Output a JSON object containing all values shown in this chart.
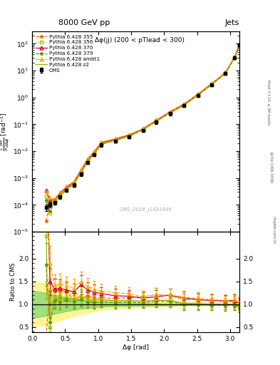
{
  "title_top": "8000 GeV pp",
  "title_right": "Jets",
  "annotation": "Δφ(jj) (200 < pTlead < 300)",
  "watermark": "CMS_2016_I1421646",
  "rivet_text": "Rivet 3.1.10, ≥ 3M events",
  "arxiv_text": "[arXiv:1306.3436]",
  "mcplots_text": "mcplots.cern.ch",
  "ylabel_main": "$\\frac{1}{\\sigma}\\frac{d\\sigma}{d\\Delta\\phi}$ [rad$^{-1}$]",
  "ylabel_ratio": "Ratio to CMS",
  "xlabel": "Δφ [rad]",
  "xlim": [
    0.0,
    3.14159
  ],
  "ylim_main": [
    1e-05,
    300
  ],
  "ylim_ratio": [
    0.39,
    2.59
  ],
  "ratio_yticks": [
    0.5,
    1.0,
    1.5,
    2.0
  ],
  "cms_x": [
    0.21,
    0.27,
    0.34,
    0.42,
    0.52,
    0.63,
    0.74,
    0.84,
    0.94,
    1.05,
    1.26,
    1.47,
    1.68,
    1.88,
    2.09,
    2.3,
    2.51,
    2.72,
    2.93,
    3.07,
    3.14
  ],
  "cms_y": [
    8e-05,
    0.0001,
    0.00012,
    0.0002,
    0.00035,
    0.00055,
    0.0014,
    0.0038,
    0.0075,
    0.017,
    0.024,
    0.034,
    0.06,
    0.12,
    0.25,
    0.5,
    1.2,
    3.0,
    8.0,
    30.0,
    90.0
  ],
  "cms_yerr": [
    2e-05,
    2e-05,
    2e-05,
    3e-05,
    5e-05,
    8e-05,
    0.0002,
    0.0005,
    0.001,
    0.002,
    0.003,
    0.004,
    0.007,
    0.015,
    0.03,
    0.06,
    0.15,
    0.35,
    0.9,
    3.5,
    10.0
  ],
  "p355_x": [
    0.21,
    0.27,
    0.34,
    0.42,
    0.52,
    0.63,
    0.74,
    0.84,
    0.94,
    1.05,
    1.26,
    1.47,
    1.68,
    1.88,
    2.09,
    2.3,
    2.51,
    2.72,
    2.93,
    3.07,
    3.14
  ],
  "p355_y": [
    2.5e-05,
    0.00013,
    0.00016,
    0.00026,
    0.00045,
    0.0006,
    0.0016,
    0.0045,
    0.0085,
    0.0195,
    0.027,
    0.039,
    0.07,
    0.145,
    0.3,
    0.55,
    1.35,
    3.3,
    8.5,
    32.0,
    90.0
  ],
  "p355_color": "#ff6600",
  "p355_marker": "*",
  "p355_ls": "--",
  "p356_x": [
    0.21,
    0.27,
    0.34,
    0.42,
    0.52,
    0.63,
    0.74,
    0.84,
    0.94,
    1.05,
    1.26,
    1.47,
    1.68,
    1.88,
    2.09,
    2.3,
    2.51,
    2.72,
    2.93,
    3.07,
    3.14
  ],
  "p356_y": [
    0.0002,
    5e-05,
    0.00014,
    0.00022,
    0.0004,
    0.0006,
    0.0016,
    0.0042,
    0.008,
    0.0185,
    0.0255,
    0.0365,
    0.065,
    0.132,
    0.275,
    0.52,
    1.25,
    3.1,
    8.2,
    31.0,
    88.0
  ],
  "p356_color": "#99cc00",
  "p356_marker": "s",
  "p356_ls": ":",
  "p370_x": [
    0.21,
    0.27,
    0.34,
    0.42,
    0.52,
    0.63,
    0.74,
    0.84,
    0.94,
    1.05,
    1.26,
    1.47,
    1.68,
    1.88,
    2.09,
    2.3,
    2.51,
    2.72,
    2.93,
    3.07,
    3.14
  ],
  "p370_y": [
    0.00035,
    0.00015,
    0.00016,
    0.00027,
    0.00046,
    0.0007,
    0.002,
    0.005,
    0.0095,
    0.021,
    0.0285,
    0.04,
    0.068,
    0.14,
    0.3,
    0.57,
    1.32,
    3.25,
    8.6,
    32.5,
    92.0
  ],
  "p370_color": "#cc0033",
  "p370_marker": "^",
  "p370_ls": "-",
  "p379_x": [
    0.21,
    0.27,
    0.34,
    0.42,
    0.52,
    0.63,
    0.74,
    0.84,
    0.94,
    1.05,
    1.26,
    1.47,
    1.68,
    1.88,
    2.09,
    2.3,
    2.51,
    2.72,
    2.93,
    3.07,
    3.14
  ],
  "p379_y": [
    0.00015,
    6e-05,
    0.00013,
    0.00021,
    0.00038,
    0.00058,
    0.00155,
    0.004,
    0.0078,
    0.018,
    0.025,
    0.0355,
    0.062,
    0.128,
    0.265,
    0.5,
    1.2,
    2.95,
    7.8,
    29.5,
    84.0
  ],
  "p379_color": "#669900",
  "p379_marker": "*",
  "p379_ls": "--",
  "pambt1_x": [
    0.21,
    0.27,
    0.34,
    0.42,
    0.52,
    0.63,
    0.74,
    0.84,
    0.94,
    1.05,
    1.26,
    1.47,
    1.68,
    1.88,
    2.09,
    2.3,
    2.51,
    2.72,
    2.93,
    3.07,
    3.14
  ],
  "pambt1_y": [
    0.0003,
    0.00019,
    0.00017,
    0.00029,
    0.00049,
    0.00075,
    0.0021,
    0.0053,
    0.01,
    0.022,
    0.03,
    0.042,
    0.07,
    0.145,
    0.3,
    0.58,
    1.35,
    3.3,
    8.7,
    33.0,
    94.0
  ],
  "pambt1_color": "#ffaa00",
  "pambt1_marker": "^",
  "pambt1_ls": "--",
  "pz2_x": [
    0.21,
    0.27,
    0.34,
    0.42,
    0.52,
    0.63,
    0.74,
    0.84,
    0.94,
    1.05,
    1.26,
    1.47,
    1.68,
    1.88,
    2.09,
    2.3,
    2.51,
    2.72,
    2.93,
    3.07,
    3.14
  ],
  "pz2_y": [
    0.00012,
    9.5e-05,
    0.000135,
    0.00022,
    0.0004,
    0.00062,
    0.00165,
    0.0042,
    0.0082,
    0.0188,
    0.0258,
    0.0368,
    0.064,
    0.13,
    0.27,
    0.51,
    1.22,
    3.0,
    7.95,
    30.0,
    86.0
  ],
  "pz2_color": "#aaaa00",
  "pz2_marker": null,
  "pz2_ls": "-",
  "band_green_x": [
    0.0,
    0.21,
    0.42,
    0.63,
    0.84,
    1.05,
    1.47,
    2.09,
    2.72,
    3.14159
  ],
  "band_green_lo": [
    0.7,
    0.75,
    0.82,
    0.88,
    0.92,
    0.95,
    0.97,
    0.98,
    0.99,
    1.0
  ],
  "band_green_hi": [
    1.3,
    1.25,
    1.18,
    1.12,
    1.08,
    1.05,
    1.03,
    1.02,
    1.01,
    1.0
  ],
  "band_yellow_x": [
    0.0,
    0.21,
    0.42,
    0.63,
    0.84,
    1.05,
    1.47,
    2.09,
    2.72,
    3.14159
  ],
  "band_yellow_lo": [
    0.5,
    0.55,
    0.65,
    0.75,
    0.82,
    0.88,
    0.93,
    0.96,
    0.98,
    1.0
  ],
  "band_yellow_hi": [
    1.5,
    1.45,
    1.35,
    1.25,
    1.18,
    1.12,
    1.07,
    1.04,
    1.02,
    1.0
  ]
}
